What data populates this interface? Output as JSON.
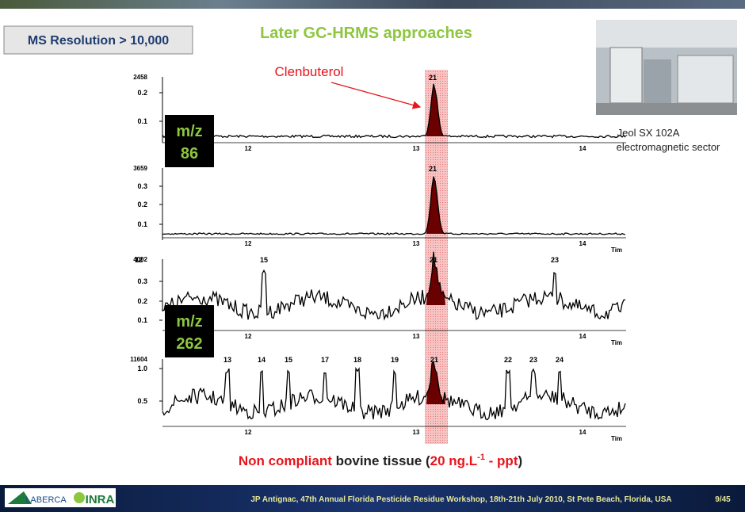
{
  "header": {
    "box": "MS Resolution > 10,000",
    "title": "Later GC-HRMS approaches"
  },
  "annotation": "Clenbuterol",
  "mz_boxes": [
    {
      "label": "m/z",
      "value": "86"
    },
    {
      "label": "m/z",
      "value": "262"
    }
  ],
  "photo_caption": [
    "Jeol SX 102A",
    "electromagnetic sector"
  ],
  "traces": [
    {
      "max": "2458",
      "yticks": [
        "0.2",
        "0.1"
      ],
      "xticks": [
        "12",
        "13",
        "14"
      ],
      "peaks": [
        "21"
      ]
    },
    {
      "max": "3659",
      "yticks": [
        "0.3",
        "0.2",
        "0.1"
      ],
      "xticks": [
        "12",
        "13",
        "14",
        "Tim"
      ],
      "peaks": [
        "21"
      ]
    },
    {
      "max": "4002",
      "yticks": [
        "0.3",
        "0.2",
        "0.1"
      ],
      "xticks": [
        "12",
        "13",
        "14",
        "Tim"
      ],
      "peaks": [
        "12",
        "15",
        "21",
        "23"
      ]
    },
    {
      "max": "11604",
      "yticks": [
        "1.0",
        "0.5"
      ],
      "xticks": [
        "12",
        "13",
        "14",
        "Tim"
      ],
      "peaks": [
        "13",
        "14",
        "15",
        "17",
        "18",
        "19",
        "21",
        "22",
        "23",
        "24"
      ]
    }
  ],
  "caption": {
    "part1": "Non compliant",
    "part2": " bovine tissue (",
    "part3": "20 ng.L",
    "sup": "-1",
    "part4": " - ppt",
    "part5": ")"
  },
  "footer": {
    "logo1": "LABERCA",
    "logo2": "INRA",
    "text": "JP Antignac, 47th Annual Florida Pesticide Residue Workshop, 18th-21th July 2010, St Pete Beach, Florida, USA",
    "page": "9/45"
  }
}
